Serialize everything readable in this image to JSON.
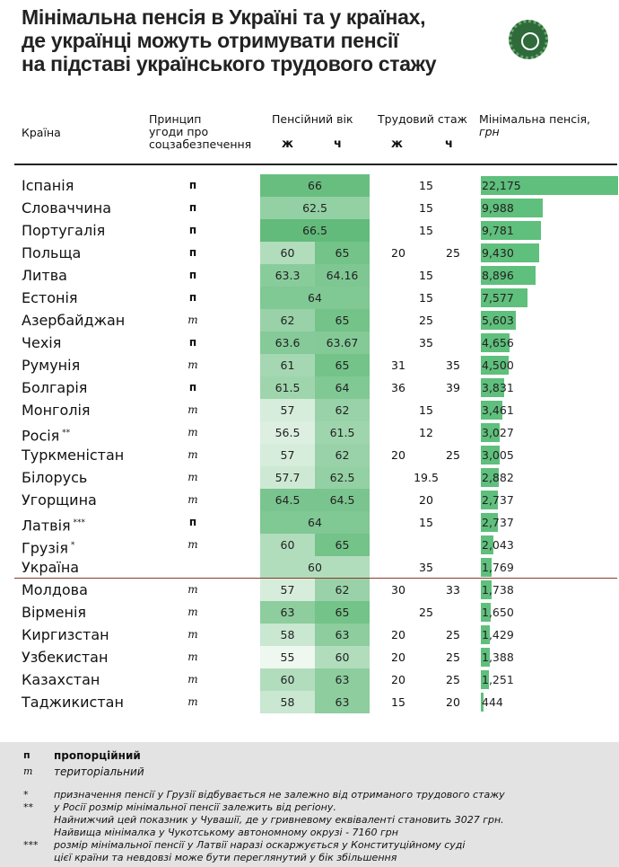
{
  "title": [
    "Мінімальна пенсія в Україні та у країнах,",
    "де українці можуть отримувати пенсії",
    "на підставі українського трудового стажу"
  ],
  "headers": {
    "country": "Країна",
    "principle": [
      "Принцип",
      "угоди про",
      "соцзабезпечення"
    ],
    "age": "Пенсійний вік",
    "service": "Трудовий стаж",
    "w": "ж",
    "m": "ч",
    "pension": "Мінімальна пенсія,",
    "pension_unit": "грн"
  },
  "chart_data": {
    "type": "table",
    "pension_max": 22175,
    "age_range": [
      55,
      66.5
    ],
    "rows": [
      {
        "country": "Іспанія",
        "note": "",
        "principle": "п",
        "age_w": "66",
        "age_m": null,
        "srv_w": "15",
        "srv_m": null,
        "pension": 22175,
        "pension_label": "22,175"
      },
      {
        "country": "Словаччина",
        "note": "",
        "principle": "п",
        "age_w": "62.5",
        "age_m": null,
        "srv_w": "15",
        "srv_m": null,
        "pension": 9988,
        "pension_label": "9,988"
      },
      {
        "country": "Португалія",
        "note": "",
        "principle": "п",
        "age_w": "66.5",
        "age_m": null,
        "srv_w": "15",
        "srv_m": null,
        "pension": 9781,
        "pension_label": "9,781"
      },
      {
        "country": "Польща",
        "note": "",
        "principle": "п",
        "age_w": "60",
        "age_m": "65",
        "srv_w": "20",
        "srv_m": "25",
        "pension": 9430,
        "pension_label": "9,430"
      },
      {
        "country": "Литва",
        "note": "",
        "principle": "п",
        "age_w": "63.3",
        "age_m": "64.16",
        "srv_w": "15",
        "srv_m": null,
        "pension": 8896,
        "pension_label": "8,896"
      },
      {
        "country": "Естонія",
        "note": "",
        "principle": "п",
        "age_w": "64",
        "age_m": null,
        "srv_w": "15",
        "srv_m": null,
        "pension": 7577,
        "pension_label": "7,577"
      },
      {
        "country": "Азербайджан",
        "note": "",
        "principle": "т",
        "age_w": "62",
        "age_m": "65",
        "srv_w": "25",
        "srv_m": null,
        "pension": 5603,
        "pension_label": "5,603"
      },
      {
        "country": "Чехія",
        "note": "",
        "principle": "п",
        "age_w": "63.6",
        "age_m": "63.67",
        "srv_w": "35",
        "srv_m": null,
        "pension": 4656,
        "pension_label": "4,656"
      },
      {
        "country": "Румунія",
        "note": "",
        "principle": "т",
        "age_w": "61",
        "age_m": "65",
        "srv_w": "31",
        "srv_m": "35",
        "pension": 4500,
        "pension_label": "4,500"
      },
      {
        "country": "Болгарія",
        "note": "",
        "principle": "п",
        "age_w": "61.5",
        "age_m": "64",
        "srv_w": "36",
        "srv_m": "39",
        "pension": 3831,
        "pension_label": "3,831"
      },
      {
        "country": "Монголія",
        "note": "",
        "principle": "т",
        "age_w": "57",
        "age_m": "62",
        "srv_w": "15",
        "srv_m": null,
        "pension": 3461,
        "pension_label": "3,461"
      },
      {
        "country": "Росія",
        "note": "**",
        "principle": "т",
        "age_w": "56.5",
        "age_m": "61.5",
        "srv_w": "12",
        "srv_m": null,
        "pension": 3027,
        "pension_label": "3,027"
      },
      {
        "country": "Туркменістан",
        "note": "",
        "principle": "т",
        "age_w": "57",
        "age_m": "62",
        "srv_w": "20",
        "srv_m": "25",
        "pension": 3005,
        "pension_label": "3,005"
      },
      {
        "country": "Білорусь",
        "note": "",
        "principle": "т",
        "age_w": "57.7",
        "age_m": "62.5",
        "srv_w": "19.5",
        "srv_m": null,
        "pension": 2882,
        "pension_label": "2,882"
      },
      {
        "country": "Угорщина",
        "note": "",
        "principle": "т",
        "age_w": "64.5",
        "age_m": "64.5",
        "srv_w": "20",
        "srv_m": null,
        "pension": 2737,
        "pension_label": "2,737"
      },
      {
        "country": "Латвія",
        "note": "***",
        "principle": "п",
        "age_w": "64",
        "age_m": null,
        "srv_w": "15",
        "srv_m": null,
        "pension": 2737,
        "pension_label": "2,737"
      },
      {
        "country": "Грузія",
        "note": "*",
        "principle": "т",
        "age_w": "60",
        "age_m": "65",
        "srv_w": "",
        "srv_m": null,
        "pension": 2043,
        "pension_label": "2,043"
      },
      {
        "country": "Україна",
        "note": "",
        "principle": "",
        "age_w": "60",
        "age_m": null,
        "srv_w": "35",
        "srv_m": null,
        "pension": 1769,
        "pension_label": "1,769"
      },
      {
        "country": "Молдова",
        "note": "",
        "principle": "т",
        "age_w": "57",
        "age_m": "62",
        "srv_w": "30",
        "srv_m": "33",
        "pension": 1738,
        "pension_label": "1,738"
      },
      {
        "country": "Вірменія",
        "note": "",
        "principle": "т",
        "age_w": "63",
        "age_m": "65",
        "srv_w": "25",
        "srv_m": null,
        "pension": 1650,
        "pension_label": "1,650"
      },
      {
        "country": "Киргизстан",
        "note": "",
        "principle": "т",
        "age_w": "58",
        "age_m": "63",
        "srv_w": "20",
        "srv_m": "25",
        "pension": 1429,
        "pension_label": "1,429"
      },
      {
        "country": "Узбекистан",
        "note": "",
        "principle": "т",
        "age_w": "55",
        "age_m": "60",
        "srv_w": "20",
        "srv_m": "25",
        "pension": 1388,
        "pension_label": "1,388"
      },
      {
        "country": "Казахстан",
        "note": "",
        "principle": "т",
        "age_w": "60",
        "age_m": "63",
        "srv_w": "20",
        "srv_m": "25",
        "pension": 1251,
        "pension_label": "1,251"
      },
      {
        "country": "Таджикистан",
        "note": "",
        "principle": "т",
        "age_w": "58",
        "age_m": "63",
        "srv_w": "15",
        "srv_m": "20",
        "pension": 444,
        "pension_label": "444"
      }
    ]
  },
  "colors": {
    "bar": "#5fbf7c",
    "heat_low": "#eef7f0",
    "heat_high": "#62bb7a"
  },
  "legend": {
    "p_key": "п",
    "p_label": "пропорційний",
    "t_key": "т",
    "t_label": "територіальний"
  },
  "footnotes": [
    {
      "key": "*",
      "lines": [
        "призначення пенсії у Грузії відбувається не залежно від отриманого трудового стажу"
      ]
    },
    {
      "key": "**",
      "lines": [
        "у Росії розмір мінімальної пенсії залежить від регіону.",
        "Найнижчий цей показник у Чувашії, де у гривневому еквіваленті становить 3027 грн.",
        "Найвища мінімалка у Чукотському автономному окрузі - 7160 грн"
      ]
    },
    {
      "key": "***",
      "lines": [
        "розмір мінімальної пенсії у Латвії наразі оскаржується у Конституційному суді",
        "цієї країни та невдовзі може бути переглянутий у бік збільшення"
      ]
    }
  ]
}
